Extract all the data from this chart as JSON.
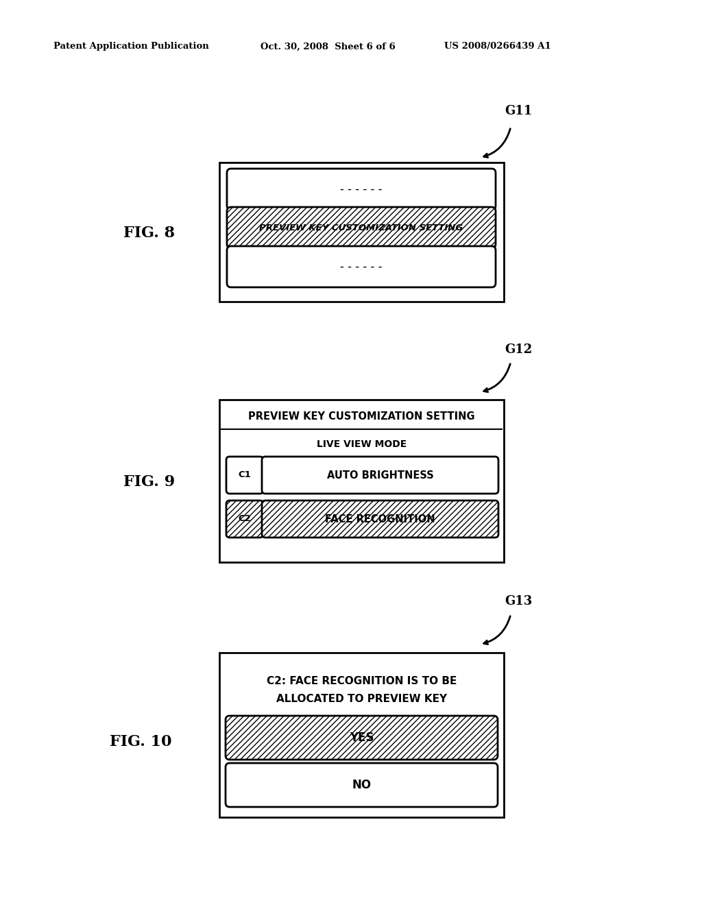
{
  "bg_color": "#ffffff",
  "header_left": "Patent Application Publication",
  "header_center": "Oct. 30, 2008  Sheet 6 of 6",
  "header_right": "US 2008/0266439 A1",
  "fig8_label": "FIG. 8",
  "fig9_label": "FIG. 9",
  "fig10_label": "FIG. 10",
  "g11_label": "G11",
  "g12_label": "G12",
  "g13_label": "G13",
  "fig8_dashes": "- - - - - -",
  "fig8_highlighted": "PREVIEW KEY CUSTOMIZATION SETTING",
  "fig9_title": "PREVIEW KEY CUSTOMIZATION SETTING",
  "fig9_subtitle": "LIVE VIEW MODE",
  "fig9_c1_label": "C1",
  "fig9_c1_text": "AUTO BRIGHTNESS",
  "fig9_c2_label": "C2",
  "fig9_c2_text": "FACE RECOGNITION",
  "fig10_text_line1": "C2: FACE RECOGNITION IS TO BE",
  "fig10_text_line2": "ALLOCATED TO PREVIEW KEY",
  "fig10_yes": "YES",
  "fig10_no": "NO"
}
